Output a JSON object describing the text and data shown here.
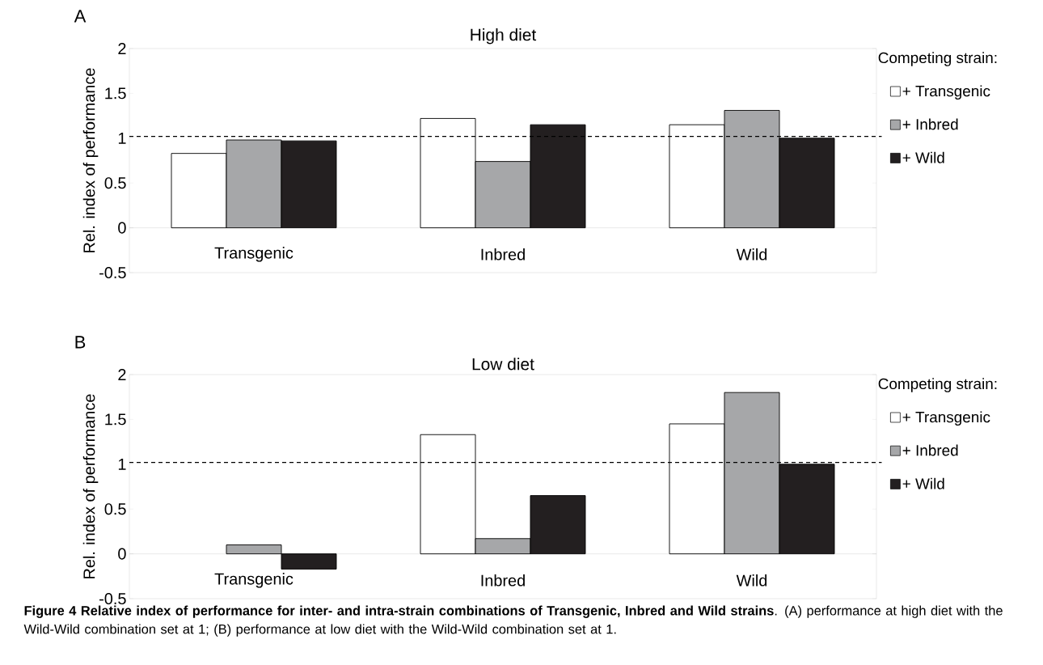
{
  "chart_data": [
    {
      "type": "bar",
      "title": "High diet",
      "ylabel": "Rel. index of performance",
      "legend_title": "Competing strain:",
      "legend": "right",
      "categories": [
        "Transgenic",
        "Inbred",
        "Wild"
      ],
      "series": [
        {
          "name": "+ Transgenic",
          "color": "#ffffff",
          "values": [
            0.83,
            1.22,
            1.15
          ]
        },
        {
          "name": "+ Inbred",
          "color": "#a6a7a9",
          "values": [
            0.98,
            0.74,
            1.31
          ]
        },
        {
          "name": "+ Wild",
          "color": "#231f20",
          "values": [
            0.97,
            1.15,
            1.0
          ]
        }
      ],
      "ylim": [
        -0.5,
        2
      ],
      "yticks": [
        -0.5,
        0,
        0.5,
        1,
        1.5,
        2
      ],
      "ref_lines": [
        {
          "axis": "y",
          "value": 1.02,
          "line_style": "dashed"
        }
      ],
      "annotations": [
        "A"
      ]
    },
    {
      "type": "bar",
      "title": "Low diet",
      "ylabel": "Rel. index of performance",
      "legend_title": "Competing strain:",
      "legend": "right",
      "categories": [
        "Transgenic",
        "Inbred",
        "Wild"
      ],
      "series": [
        {
          "name": "+ Transgenic",
          "color": "#ffffff",
          "values": [
            null,
            1.33,
            1.45
          ]
        },
        {
          "name": "+ Inbred",
          "color": "#a6a7a9",
          "values": [
            0.1,
            0.17,
            1.8
          ]
        },
        {
          "name": "+ Wild",
          "color": "#231f20",
          "values": [
            -0.17,
            0.65,
            1.0
          ]
        }
      ],
      "ylim": [
        -0.5,
        2
      ],
      "yticks": [
        -0.5,
        0,
        0.5,
        1,
        1.5,
        2
      ],
      "ref_lines": [
        {
          "axis": "y",
          "value": 1.02,
          "line_style": "dashed"
        }
      ],
      "annotations": [
        "B",
        "**Figure 4 Relative index of performance for inter- and intra-strain combinations of Transgenic, Inbred and Wild strains**. (A) performance at high diet with the Wild-Wild combination set at 1; (B) performance at low diet with the Wild-Wild combination set at 1."
      ]
    }
  ]
}
